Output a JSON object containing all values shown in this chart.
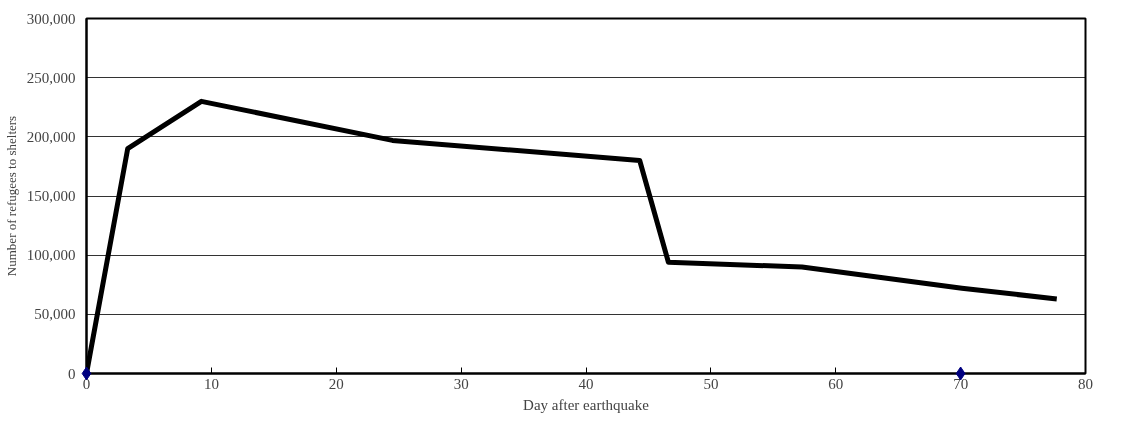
{
  "chart_data": {
    "type": "line",
    "xlabel": "Day after earthquake",
    "ylabel": "Number of refugees to shelters",
    "xlim": [
      0,
      80
    ],
    "xticks": [
      0,
      10,
      20,
      30,
      40,
      50,
      60,
      70,
      80
    ],
    "ylim": [
      0,
      300000
    ],
    "yticks": [
      {
        "value": 0,
        "label": "0"
      },
      {
        "value": 50000,
        "label": "50,000"
      },
      {
        "value": 100000,
        "label": "100,000"
      },
      {
        "value": 150000,
        "label": "150,000"
      },
      {
        "value": 200000,
        "label": "200,000"
      },
      {
        "value": 250000,
        "label": "250,000"
      },
      {
        "value": 300000,
        "label": "300,000"
      }
    ],
    "grid": "y",
    "series": [
      {
        "color": "#000000",
        "marker": "none",
        "x": [
          0,
          3.3,
          9.2,
          24.5,
          44.3,
          46.6,
          57.3,
          70.1,
          77.7
        ],
        "values": [
          0,
          190000,
          230000,
          197000,
          180000,
          94000,
          90000,
          72000,
          63000
        ]
      },
      {
        "type": "scatter",
        "color": "#000080",
        "marker": "diamond",
        "x": [
          0,
          70
        ],
        "values": [
          0,
          0
        ]
      }
    ]
  }
}
